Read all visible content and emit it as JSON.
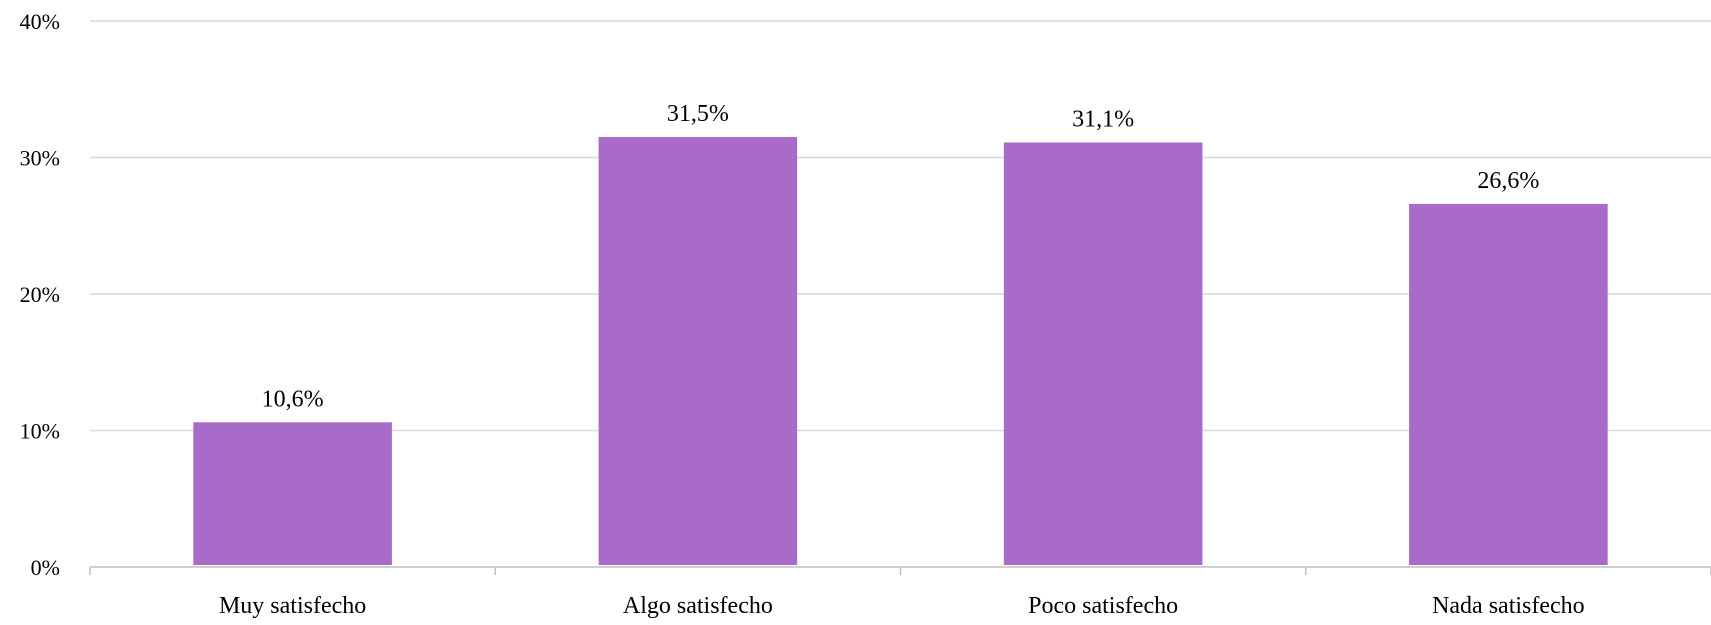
{
  "chart_data": {
    "type": "bar",
    "title": "",
    "xlabel": "",
    "ylabel": "",
    "categories": [
      "Muy satisfecho",
      "Algo satisfecho",
      "Poco satisfecho",
      "Nada satisfecho"
    ],
    "values": [
      10.6,
      31.5,
      31.1,
      26.6
    ],
    "data_labels": [
      "10,6%",
      "31,5%",
      "31,1%",
      "26,6%"
    ],
    "ylim": [
      0,
      40
    ],
    "yticks": [
      0,
      10,
      20,
      30,
      40
    ],
    "ytick_labels": [
      "0%",
      "10%",
      "20%",
      "30%",
      "40%"
    ],
    "grid": true,
    "legend": "none",
    "colors": {
      "bar": "#A86BC8",
      "gridline": "#D9D9D9",
      "axis": "#BFBFBF",
      "text": "#000000"
    }
  }
}
